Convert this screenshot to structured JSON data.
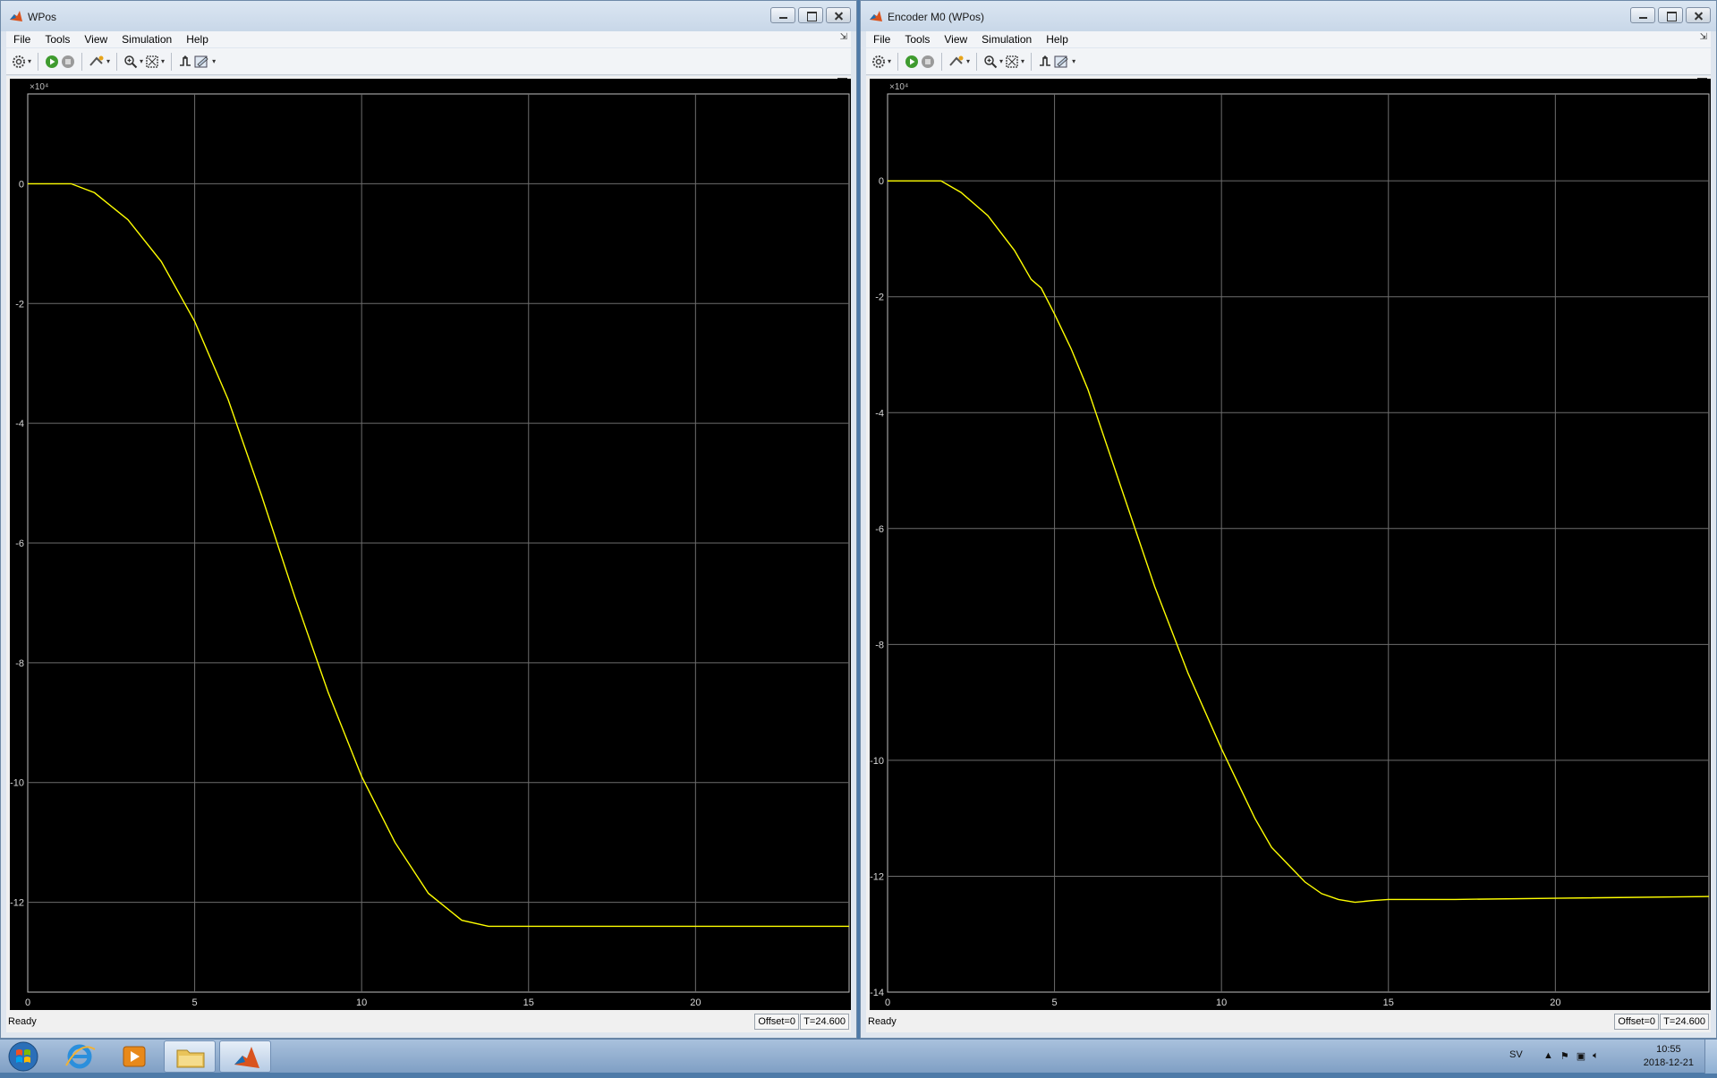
{
  "windows": [
    {
      "title": "WPos",
      "menu": [
        "File",
        "Tools",
        "View",
        "Simulation",
        "Help"
      ],
      "status": {
        "text": "Ready",
        "offset": "Offset=0",
        "time": "T=24.600"
      },
      "chart_data": {
        "type": "line",
        "title": "",
        "xlabel": "",
        "ylabel": "",
        "exponent_label": "×10⁴",
        "xlim": [
          0,
          24.6
        ],
        "ylim": [
          -13.5,
          1.5
        ],
        "xticks": [
          0,
          5,
          10,
          15,
          20
        ],
        "yticks": [
          0,
          -2,
          -4,
          -6,
          -8,
          -10,
          -12
        ],
        "grid": true,
        "line_color": "#ffff00",
        "series": [
          {
            "x": [
              0,
              1.3,
              2,
              3,
              4,
              5,
              6,
              7,
              8,
              9,
              10,
              11,
              12,
              13,
              13.8,
              14.2,
              24.6
            ],
            "y": [
              0,
              0,
              -0.15,
              -0.6,
              -1.3,
              -2.3,
              -3.6,
              -5.2,
              -6.9,
              -8.5,
              -9.9,
              -11.0,
              -11.85,
              -12.3,
              -12.4,
              -12.4,
              -12.4
            ]
          }
        ]
      }
    },
    {
      "title": "Encoder M0 (WPos)",
      "menu": [
        "File",
        "Tools",
        "View",
        "Simulation",
        "Help"
      ],
      "status": {
        "text": "Ready",
        "offset": "Offset=0",
        "time": "T=24.600"
      },
      "chart_data": {
        "type": "line",
        "title": "",
        "xlabel": "",
        "ylabel": "",
        "exponent_label": "×10⁴",
        "xlim": [
          0,
          24.6
        ],
        "ylim": [
          -14,
          1.5
        ],
        "xticks": [
          0,
          5,
          10,
          15,
          20
        ],
        "yticks": [
          0,
          -2,
          -4,
          -6,
          -8,
          -10,
          -12,
          -14
        ],
        "grid": true,
        "line_color": "#ffff00",
        "series": [
          {
            "x": [
              0,
              1.6,
              2.2,
              3,
              3.8,
              4.3,
              4.6,
              5,
              5.5,
              6,
              7,
              8,
              9,
              10,
              10.5,
              11,
              11.5,
              12,
              12.5,
              13,
              13.5,
              14,
              14.5,
              15,
              17,
              20,
              24.6
            ],
            "y": [
              0,
              0,
              -0.2,
              -0.6,
              -1.2,
              -1.7,
              -1.85,
              -2.3,
              -2.9,
              -3.6,
              -5.3,
              -7.0,
              -8.5,
              -9.8,
              -10.4,
              -11.0,
              -11.5,
              -11.8,
              -12.1,
              -12.3,
              -12.4,
              -12.45,
              -12.42,
              -12.4,
              -12.4,
              -12.38,
              -12.35
            ]
          }
        ]
      }
    }
  ],
  "taskbar": {
    "apps": [
      "start-orb",
      "internet-explorer",
      "media-player",
      "file-explorer",
      "matlab"
    ],
    "language": "SV",
    "time": "10:55",
    "date": "2018-12-21"
  }
}
